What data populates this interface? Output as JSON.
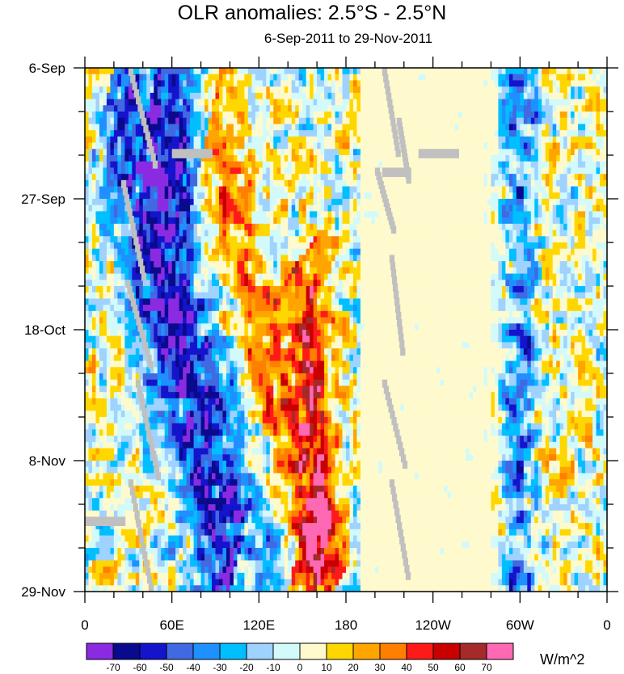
{
  "chart_data": {
    "type": "heatmap",
    "title": "OLR anomalies: 2.5°S - 2.5°N",
    "subtitle": "6-Sep-2011 to 29-Nov-2011",
    "x_tick_labels": [
      "0",
      "60E",
      "120E",
      "180",
      "120W",
      "60W",
      "0"
    ],
    "x_tick_degrees": [
      0,
      60,
      120,
      180,
      240,
      300,
      360
    ],
    "x_range": [
      0,
      360
    ],
    "y_tick_labels": [
      "6-Sep",
      "27-Sep",
      "18-Oct",
      "8-Nov",
      "29-Nov"
    ],
    "y_tick_days": [
      0,
      21,
      42,
      63,
      84
    ],
    "y_range": [
      0,
      84
    ],
    "colorbar_labels": [
      "-70",
      "-60",
      "-50",
      "-40",
      "-30",
      "-20",
      "-10",
      "0",
      "10",
      "20",
      "30",
      "40",
      "50",
      "60",
      "70"
    ],
    "colorbar_colors": [
      "#8a2be2",
      "#0a0a8c",
      "#1414cd",
      "#4169e1",
      "#1e90ff",
      "#00bfff",
      "#a0d2ff",
      "#d2fafa",
      "#fffacd",
      "#ffd700",
      "#ffa500",
      "#ff7f00",
      "#ff1a1a",
      "#c80000",
      "#a52a2a",
      "#ff69b4"
    ],
    "units": "W/m^2",
    "missing_color": "#c0c0c0",
    "features": [
      {
        "kind": "convective_band",
        "sign": -1,
        "lon_start": 20,
        "day_start": 0,
        "lon_end": 100,
        "day_end": 84,
        "strength": 45
      },
      {
        "kind": "convective_band",
        "sign": -1,
        "lon_start": 50,
        "day_start": 0,
        "lon_end": 140,
        "day_end": 84,
        "strength": 40
      },
      {
        "kind": "convective_band",
        "sign": -1,
        "lon_start": 300,
        "day_start": 0,
        "lon_end": 300,
        "day_end": 84,
        "strength": 30
      },
      {
        "kind": "dry_band",
        "sign": 1,
        "lon_start": 80,
        "day_start": 15,
        "lon_end": 160,
        "day_end": 84,
        "strength": 45
      },
      {
        "kind": "dry_band",
        "sign": 1,
        "lon_start": 150,
        "day_start": 30,
        "lon_end": 170,
        "day_end": 84,
        "strength": 40
      },
      {
        "kind": "calm_region",
        "sign": 0,
        "lon_start": 190,
        "day_start": 0,
        "lon_end": 280,
        "day_end": 84,
        "strength": 0
      }
    ]
  }
}
